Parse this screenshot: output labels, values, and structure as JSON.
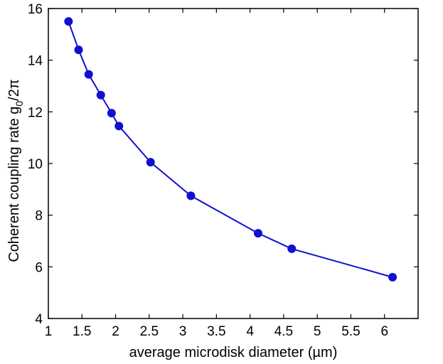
{
  "chart_data": {
    "type": "line",
    "title": "",
    "xlabel": "average microdisk diameter (µm)",
    "ylabel": {
      "main": "Coherent coupling rate g",
      "subscript": "0",
      "suffix": "/2π"
    },
    "xlim": [
      1,
      6.5
    ],
    "ylim": [
      4,
      16
    ],
    "xticks": [
      1,
      1.5,
      2,
      2.5,
      3,
      3.5,
      4,
      4.5,
      5,
      5.5,
      6
    ],
    "yticks": [
      4,
      6,
      8,
      10,
      12,
      14,
      16
    ],
    "grid": false,
    "series": [
      {
        "color": "#1010d0",
        "marker": "circle",
        "x": [
          1.3,
          1.45,
          1.6,
          1.78,
          1.94,
          2.05,
          2.52,
          3.12,
          4.12,
          4.62,
          6.12
        ],
        "y": [
          15.5,
          14.4,
          13.45,
          12.65,
          11.95,
          11.45,
          10.05,
          8.75,
          7.3,
          6.7,
          5.6
        ]
      }
    ]
  }
}
